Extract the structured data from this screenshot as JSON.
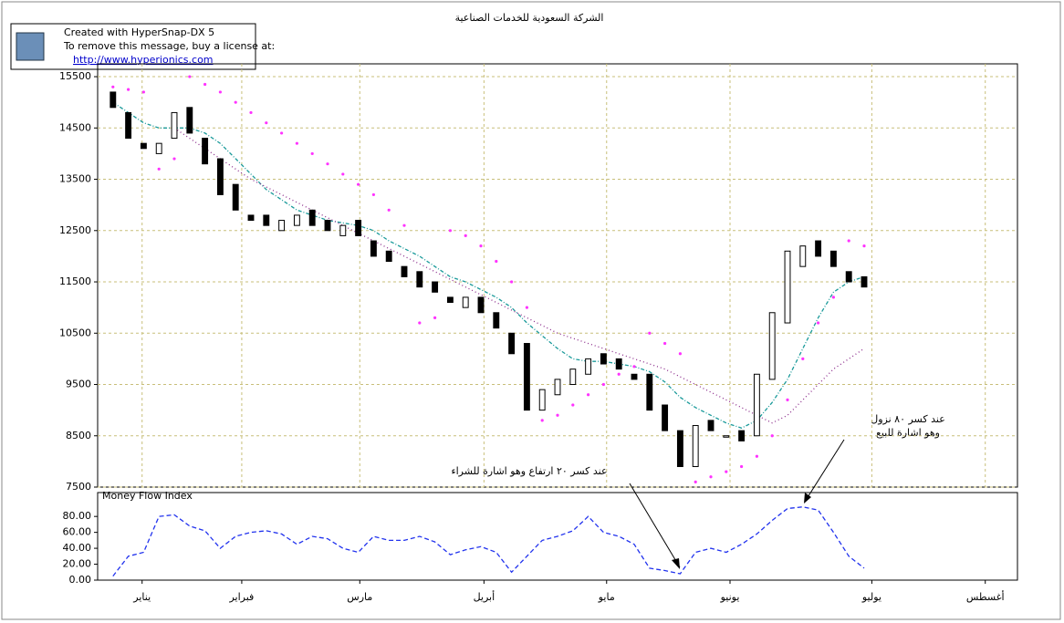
{
  "watermark": {
    "lines": [
      "Created with HyperSnap-DX 5",
      "To remove this message, buy a license at:",
      "http://www.hyperionics.com"
    ]
  },
  "chart_data": [
    {
      "type": "candlestick",
      "title": "الشركة السعودية للخدمات الصناعية",
      "xlim": [
        -1,
        59
      ],
      "xticks": [
        {
          "value": 1.9,
          "label": "يناير"
        },
        {
          "value": 8.4,
          "label": "فبراير"
        },
        {
          "value": 16.1,
          "label": "مارس"
        },
        {
          "value": 24.2,
          "label": "أبريل"
        },
        {
          "value": 32.2,
          "label": "مايو"
        },
        {
          "value": 40.25,
          "label": "يونيو"
        },
        {
          "value": 49.5,
          "label": "يوليو"
        },
        {
          "value": 56.9,
          "label": "أغسطس"
        }
      ],
      "ylim": [
        7500,
        15750
      ],
      "yticks": [
        7500,
        8500,
        9500,
        10500,
        11500,
        12500,
        13500,
        14500,
        15500
      ],
      "grid": true,
      "color": "#000000",
      "open": [
        15200,
        14800,
        14200,
        14000,
        14300,
        14900,
        14300,
        13900,
        13400,
        12800,
        12800,
        12500,
        12600,
        12900,
        12700,
        12400,
        12700,
        12300,
        12100,
        11800,
        11700,
        11500,
        11200,
        11000,
        11200,
        10900,
        10500,
        10300,
        9000,
        9300,
        9500,
        9700,
        10100,
        10000,
        9700,
        9700,
        9100,
        8600,
        7900,
        8800,
        8500,
        8600,
        8500,
        9600,
        10700,
        11800,
        12300,
        12100,
        11700,
        11600
      ],
      "close": [
        14900,
        14300,
        14100,
        14200,
        14800,
        14400,
        13800,
        13200,
        12900,
        12700,
        12600,
        12700,
        12800,
        12600,
        12500,
        12600,
        12400,
        12000,
        11900,
        11600,
        11400,
        11300,
        11100,
        11200,
        10900,
        10600,
        10100,
        9000,
        9400,
        9600,
        9800,
        10000,
        9900,
        9800,
        9600,
        9000,
        8600,
        7900,
        8700,
        8600,
        8500,
        8400,
        9700,
        10900,
        12100,
        12200,
        12000,
        11800,
        11500,
        11400
      ],
      "series": [
        {
          "kind": "line",
          "style": "dashdot",
          "color": "#1a9a9a",
          "values": [
            15000,
            14800,
            14600,
            14500,
            14500,
            14500,
            14400,
            14200,
            13900,
            13600,
            13300,
            13100,
            12900,
            12800,
            12700,
            12650,
            12600,
            12500,
            12300,
            12150,
            12000,
            11800,
            11600,
            11500,
            11350,
            11200,
            11000,
            10700,
            10450,
            10200,
            10000,
            9950,
            9950,
            9900,
            9850,
            9750,
            9550,
            9250,
            9050,
            8900,
            8750,
            8650,
            8800,
            9150,
            9600,
            10200,
            10800,
            11300,
            11500,
            11600
          ]
        },
        {
          "kind": "line",
          "style": "dotted",
          "color": "#8a2a8a",
          "values": [
            null,
            null,
            null,
            null,
            14500,
            14300,
            14100,
            13900,
            13700,
            13500,
            13350,
            13200,
            13050,
            12900,
            12750,
            12600,
            12450,
            12300,
            12150,
            12000,
            11850,
            11700,
            11550,
            11400,
            11250,
            11100,
            10950,
            10800,
            10650,
            10500,
            10400,
            10300,
            10200,
            10100,
            10000,
            9900,
            9800,
            9650,
            9500,
            9350,
            9200,
            9050,
            8900,
            8750,
            8900,
            9200,
            9500,
            9800,
            10000,
            10200
          ]
        },
        {
          "kind": "dots",
          "color": "#ff33ff",
          "values": [
            15300,
            15250,
            15200,
            13700,
            13900,
            15500,
            15350,
            15200,
            15000,
            14800,
            14600,
            14400,
            14200,
            14000,
            13800,
            13600,
            13400,
            13200,
            12900,
            12600,
            10700,
            10800,
            12500,
            12400,
            12200,
            11900,
            11500,
            11000,
            8800,
            8900,
            9100,
            9300,
            9500,
            9700,
            9850,
            10500,
            10300,
            10100,
            7600,
            7700,
            7800,
            7900,
            8100,
            8500,
            9200,
            10000,
            10700,
            11200,
            12300,
            12200
          ]
        }
      ],
      "annotations": [
        "عند كسر ٢٠ ارتفاع وهو اشارة للشراء",
        "عند كسر ٨٠ نزول",
        "وهو اشارة للبيع"
      ]
    },
    {
      "type": "line",
      "title": "Money Flow Index",
      "xlim": [
        -1,
        59
      ],
      "ylim": [
        0,
        110
      ],
      "yticks": [
        {
          "value": 0,
          "label": "0.00"
        },
        {
          "value": 20,
          "label": "20.00"
        },
        {
          "value": 40,
          "label": "40.00"
        },
        {
          "value": 60,
          "label": "60.00"
        },
        {
          "value": 80,
          "label": "80.00"
        }
      ],
      "color": "#2233ee",
      "values": [
        5,
        30,
        35,
        80,
        82,
        68,
        62,
        40,
        55,
        60,
        62,
        58,
        45,
        55,
        52,
        40,
        35,
        55,
        50,
        50,
        55,
        48,
        32,
        38,
        42,
        35,
        10,
        30,
        50,
        55,
        62,
        80,
        60,
        55,
        45,
        15,
        12,
        8,
        35,
        40,
        35,
        45,
        58,
        75,
        90,
        92,
        88,
        60,
        30,
        15
      ]
    }
  ]
}
